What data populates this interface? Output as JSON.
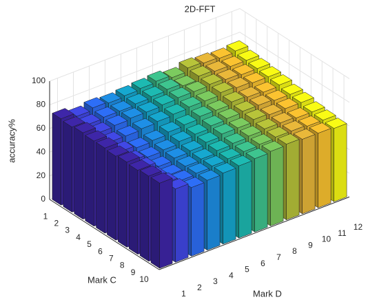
{
  "chart_data": {
    "type": "bar3d",
    "title": "2D-FFT",
    "x_label": "Mark D",
    "y_label": "Mark C",
    "z_label": "accuracy%",
    "x_categories": [
      1,
      2,
      3,
      4,
      5,
      6,
      7,
      8,
      9,
      10,
      11,
      12
    ],
    "y_categories": [
      1,
      2,
      3,
      4,
      5,
      6,
      7,
      8,
      9,
      10
    ],
    "values": [
      [
        73,
        70,
        72,
        71,
        72,
        73,
        74,
        72,
        75,
        74,
        73,
        74
      ],
      [
        72,
        69,
        70,
        70,
        71,
        72,
        73,
        71,
        74,
        73,
        72,
        72
      ],
      [
        73,
        68,
        69,
        70,
        70,
        71,
        72,
        72,
        73,
        72,
        71,
        71
      ],
      [
        72,
        66,
        66,
        67,
        68,
        69,
        70,
        70,
        72,
        71,
        70,
        70
      ],
      [
        72,
        64,
        62,
        63,
        65,
        66,
        68,
        68,
        70,
        69,
        68,
        69
      ],
      [
        71,
        62,
        60,
        61,
        63,
        64,
        66,
        67,
        68,
        68,
        67,
        67
      ],
      [
        72,
        62,
        58,
        60,
        61,
        63,
        65,
        65,
        67,
        66,
        66,
        66
      ],
      [
        71,
        60,
        57,
        59,
        60,
        62,
        63,
        64,
        65,
        65,
        64,
        64
      ],
      [
        72,
        61,
        58,
        59,
        60,
        61,
        62,
        63,
        64,
        64,
        63,
        63
      ],
      [
        72,
        62,
        58,
        59,
        60,
        61,
        62,
        63,
        64,
        63,
        63,
        62
      ]
    ],
    "colors": [
      "#3e26a8",
      "#4148e6",
      "#2d6ef7",
      "#1e8fe6",
      "#16a8d0",
      "#1dbab2",
      "#3ec58f",
      "#7ccb5f",
      "#b8c43a",
      "#e9b83a",
      "#fbc330",
      "#f9fb15"
    ],
    "zlim": [
      0,
      100
    ],
    "zticks": [
      0,
      20,
      40,
      60,
      80,
      100
    ],
    "grid": true
  }
}
